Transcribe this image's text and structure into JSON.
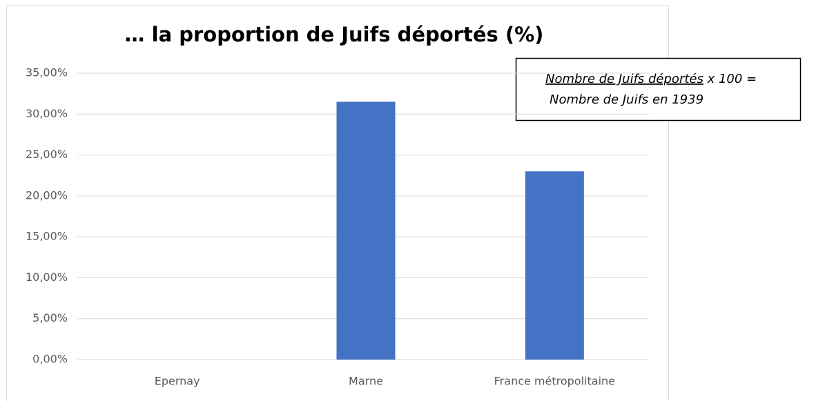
{
  "chart_data": {
    "type": "bar",
    "title": "… la proportion de Juifs déportés (%)",
    "categories": [
      "Epernay",
      "Marne",
      "France métropolitaine"
    ],
    "values": [
      0,
      31.5,
      23.0
    ],
    "color": "#4472c4",
    "ylim": [
      0,
      35
    ],
    "yticks": [
      {
        "value": 0,
        "label": "0,00%"
      },
      {
        "value": 5,
        "label": "5,00%"
      },
      {
        "value": 10,
        "label": "10,00%"
      },
      {
        "value": 15,
        "label": "15,00%"
      },
      {
        "value": 20,
        "label": "20,00%"
      },
      {
        "value": 25,
        "label": "25,00%"
      },
      {
        "value": 30,
        "label": "30,00%"
      },
      {
        "value": 35,
        "label": "35,00%"
      }
    ],
    "grid": true,
    "annotation": {
      "numerator": "Nombre de Juifs déportés",
      "operator": "x 100 =",
      "denominator": "Nombre de Juifs en 1939"
    }
  }
}
